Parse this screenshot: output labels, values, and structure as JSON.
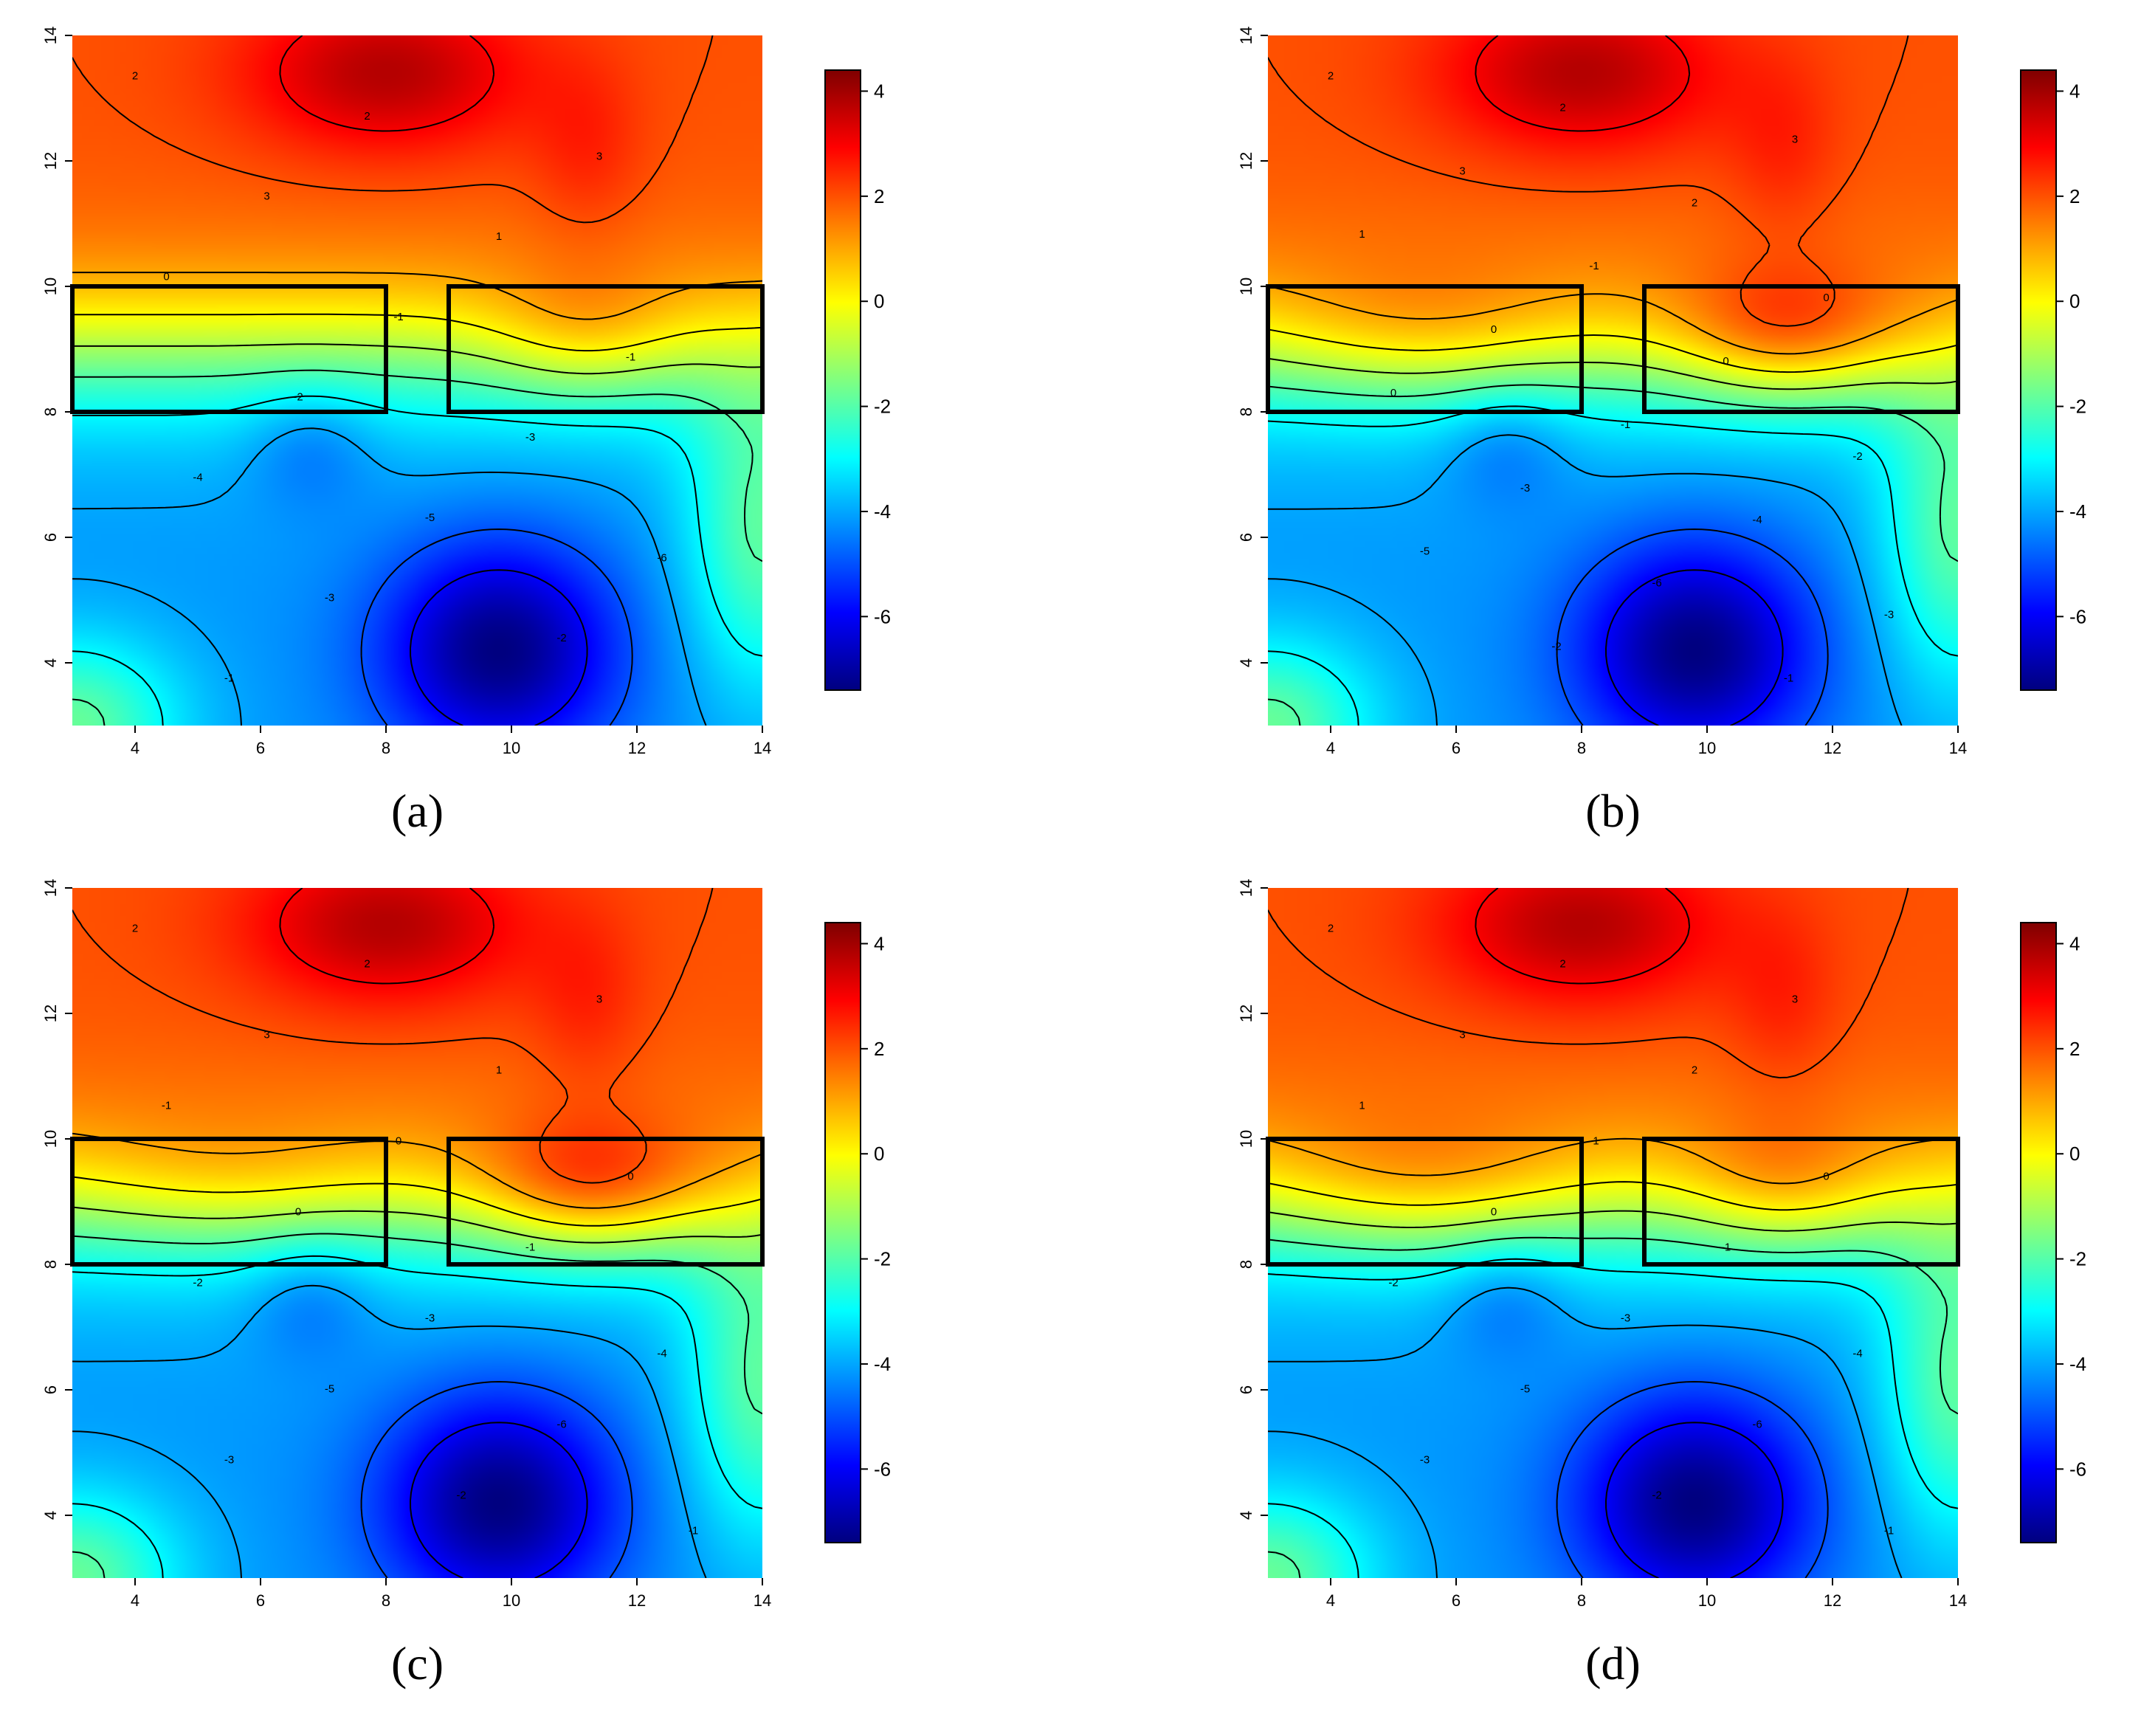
{
  "colors": {
    "scale": [
      "#00007f",
      "#0000ff",
      "#0080ff",
      "#00ffff",
      "#80ff80",
      "#ffff00",
      "#ff8000",
      "#ff0000",
      "#7f0000"
    ],
    "contour": "#000000",
    "box": "#000000"
  },
  "chart_data": [
    {
      "type": "heatmap",
      "panel_label": "(a)",
      "title": "",
      "xlabel": "",
      "ylabel": "",
      "xlim": [
        3,
        14
      ],
      "ylim": [
        3,
        14
      ],
      "x_ticks": [
        4,
        6,
        8,
        10,
        12,
        14
      ],
      "y_ticks": [
        4,
        6,
        8,
        10,
        12,
        14
      ],
      "colorbar": {
        "range": [
          -7.4,
          4.4
        ],
        "ticks": [
          4,
          2,
          0,
          -2,
          -4,
          -6
        ]
      },
      "grid": false,
      "legend": "colorbar-right",
      "zones": [
        {
          "x": [
            3,
            8
          ],
          "y": [
            8,
            10
          ]
        },
        {
          "x": [
            9,
            14
          ],
          "y": [
            8,
            10
          ]
        }
      ],
      "contour_labels": [
        "2",
        "2",
        "3",
        "3",
        "1",
        "0",
        "-1",
        "-1",
        "-2",
        "-3",
        "-4",
        "-5",
        "-6",
        "-3",
        "-2",
        "-1"
      ],
      "band_anomaly": [
        {
          "cx": 5.5,
          "cy": 9.2,
          "amp": 0.0,
          "sx": 1.8,
          "sy": 0.8
        },
        {
          "cx": 11.5,
          "cy": 9.2,
          "amp": 0.0,
          "sx": 1.8,
          "sy": 0.8
        }
      ]
    },
    {
      "type": "heatmap",
      "panel_label": "(b)",
      "title": "",
      "xlabel": "",
      "ylabel": "",
      "xlim": [
        3,
        14
      ],
      "ylim": [
        3,
        14
      ],
      "x_ticks": [
        4,
        6,
        8,
        10,
        12,
        14
      ],
      "y_ticks": [
        4,
        6,
        8,
        10,
        12,
        14
      ],
      "colorbar": {
        "range": [
          -7.4,
          4.4
        ],
        "ticks": [
          4,
          2,
          0,
          -2,
          -4,
          -6
        ]
      },
      "grid": false,
      "legend": "colorbar-right",
      "zones": [
        {
          "x": [
            3,
            8
          ],
          "y": [
            8,
            10
          ]
        },
        {
          "x": [
            9,
            14
          ],
          "y": [
            8,
            10
          ]
        }
      ],
      "contour_labels": [
        "2",
        "2",
        "3",
        "3",
        "2",
        "1",
        "-1",
        "0",
        "0",
        "0",
        "0",
        "-1",
        "-2",
        "-3",
        "-4",
        "-5",
        "-6",
        "-3",
        "-2",
        "-1"
      ],
      "band_anomaly": [
        {
          "cx": 5.5,
          "cy": 9.2,
          "amp": 1.2,
          "sx": 1.8,
          "sy": 0.8
        },
        {
          "cx": 11.5,
          "cy": 9.2,
          "amp": 1.2,
          "sx": 1.8,
          "sy": 0.8
        }
      ]
    },
    {
      "type": "heatmap",
      "panel_label": "(c)",
      "title": "",
      "xlabel": "",
      "ylabel": "",
      "xlim": [
        3,
        14
      ],
      "ylim": [
        3,
        14
      ],
      "x_ticks": [
        4,
        6,
        8,
        10,
        12,
        14
      ],
      "y_ticks": [
        4,
        6,
        8,
        10,
        12,
        14
      ],
      "colorbar": {
        "range": [
          -7.4,
          4.4
        ],
        "ticks": [
          4,
          2,
          0,
          -2,
          -4,
          -6
        ]
      },
      "grid": false,
      "legend": "colorbar-right",
      "zones": [
        {
          "x": [
            3,
            8
          ],
          "y": [
            8,
            10
          ]
        },
        {
          "x": [
            9,
            14
          ],
          "y": [
            8,
            10
          ]
        }
      ],
      "contour_labels": [
        "2",
        "2",
        "3",
        "3",
        "1",
        "-1",
        "0",
        "0",
        "0",
        "-1",
        "-2",
        "-3",
        "-4",
        "-5",
        "-6",
        "-3",
        "-2",
        "-1"
      ],
      "band_anomaly": [
        {
          "cx": 5.5,
          "cy": 9.2,
          "amp": 0.8,
          "sx": 1.8,
          "sy": 0.8
        },
        {
          "cx": 11.5,
          "cy": 9.2,
          "amp": 1.3,
          "sx": 1.8,
          "sy": 0.8
        }
      ]
    },
    {
      "type": "heatmap",
      "panel_label": "(d)",
      "title": "",
      "xlabel": "",
      "ylabel": "",
      "xlim": [
        3,
        14
      ],
      "ylim": [
        3,
        14
      ],
      "x_ticks": [
        4,
        6,
        8,
        10,
        12,
        14
      ],
      "y_ticks": [
        4,
        6,
        8,
        10,
        12,
        14
      ],
      "colorbar": {
        "range": [
          -7.4,
          4.4
        ],
        "ticks": [
          4,
          2,
          0,
          -2,
          -4,
          -6
        ]
      },
      "grid": false,
      "legend": "colorbar-right",
      "zones": [
        {
          "x": [
            3,
            8
          ],
          "y": [
            8,
            10
          ]
        },
        {
          "x": [
            9,
            14
          ],
          "y": [
            8,
            10
          ]
        }
      ],
      "contour_labels": [
        "2",
        "2",
        "3",
        "3",
        "2",
        "1",
        "-1",
        "0",
        "0",
        "-1",
        "-2",
        "-3",
        "-4",
        "-5",
        "-6",
        "-3",
        "-2",
        "-1"
      ],
      "band_anomaly": [
        {
          "cx": 5.5,
          "cy": 9.2,
          "amp": 1.3,
          "sx": 1.8,
          "sy": 0.8
        },
        {
          "cx": 11.5,
          "cy": 9.2,
          "amp": 0.3,
          "sx": 1.8,
          "sy": 0.8
        }
      ]
    }
  ]
}
